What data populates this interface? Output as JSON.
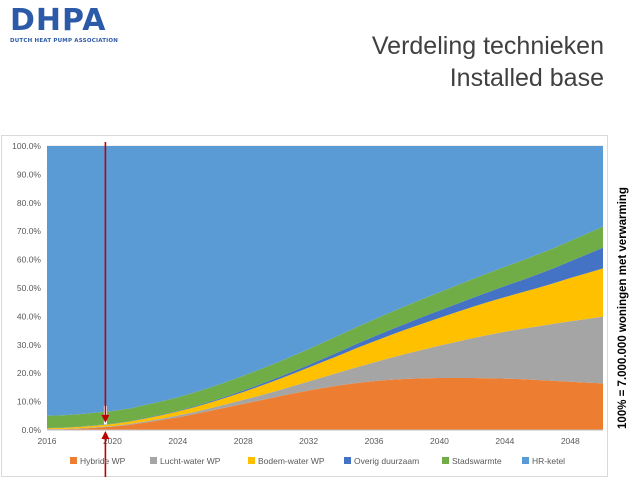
{
  "logo": {
    "text": "DHPA",
    "subtitle": "DUTCH HEAT PUMP ASSOCIATION"
  },
  "header": {
    "title_line1": "Verdeling technieken",
    "title_line2": "Installed base"
  },
  "side_note": "100% = 7.000.000 woningen met verwarming",
  "chart_data": {
    "type": "area",
    "stacked": true,
    "x": [
      2016,
      2017,
      2018,
      2019,
      2020,
      2021,
      2022,
      2023,
      2024,
      2025,
      2026,
      2027,
      2028,
      2029,
      2030,
      2031,
      2032,
      2033,
      2034,
      2035,
      2036,
      2037,
      2038,
      2039,
      2040,
      2041,
      2042,
      2043,
      2044,
      2045,
      2046,
      2047,
      2048,
      2049,
      2050
    ],
    "xticks": [
      "2016",
      "2020",
      "2024",
      "2028",
      "2032",
      "2036",
      "2040",
      "2044",
      "2048"
    ],
    "yticks": [
      "0.0%",
      "10.0%",
      "20.0%",
      "30.0%",
      "40.0%",
      "50.0%",
      "60.0%",
      "70.0%",
      "80.0%",
      "90.0%",
      "100.0%"
    ],
    "ylim": [
      0,
      100
    ],
    "series": [
      {
        "name": "Hybride WP",
        "color": "#ed7d31",
        "values": [
          0.2,
          0.3,
          0.5,
          0.8,
          1.2,
          1.8,
          2.6,
          3.5,
          4.5,
          5.6,
          6.8,
          8.0,
          9.2,
          10.4,
          11.6,
          12.8,
          13.9,
          14.9,
          15.8,
          16.6,
          17.2,
          17.7,
          18.0,
          18.2,
          18.3,
          18.3,
          18.3,
          18.2,
          18.1,
          17.9,
          17.6,
          17.3,
          17.0,
          16.7,
          16.4
        ]
      },
      {
        "name": "Lucht-water WP",
        "color": "#a5a5a5",
        "values": [
          0.1,
          0.1,
          0.1,
          0.2,
          0.2,
          0.3,
          0.4,
          0.5,
          0.6,
          0.7,
          0.9,
          1.1,
          1.4,
          1.7,
          2.1,
          2.6,
          3.2,
          3.9,
          4.7,
          5.6,
          6.6,
          7.7,
          8.9,
          10.1,
          11.4,
          12.7,
          14.0,
          15.3,
          16.5,
          17.7,
          18.9,
          20.1,
          21.3,
          22.4,
          23.5
        ]
      },
      {
        "name": "Bodem-water WP",
        "color": "#ffc000",
        "values": [
          0.3,
          0.4,
          0.5,
          0.6,
          0.7,
          0.8,
          1.0,
          1.2,
          1.4,
          1.7,
          2.0,
          2.4,
          2.8,
          3.3,
          3.8,
          4.3,
          4.9,
          5.5,
          6.1,
          6.8,
          7.4,
          8.0,
          8.6,
          9.2,
          9.8,
          10.4,
          11.0,
          11.6,
          12.2,
          12.8,
          13.5,
          14.3,
          15.2,
          16.1,
          17.0
        ]
      },
      {
        "name": "Overig duurzaam",
        "color": "#4472c4",
        "values": [
          0.1,
          0.1,
          0.1,
          0.1,
          0.1,
          0.1,
          0.2,
          0.2,
          0.2,
          0.3,
          0.3,
          0.4,
          0.5,
          0.6,
          0.7,
          0.8,
          0.9,
          1.1,
          1.3,
          1.5,
          1.7,
          1.9,
          2.1,
          2.4,
          2.6,
          2.9,
          3.2,
          3.5,
          3.9,
          4.3,
          4.8,
          5.3,
          5.9,
          6.6,
          7.3
        ]
      },
      {
        "name": "Stadswarmte",
        "color": "#70ad47",
        "values": [
          4.3,
          4.3,
          4.4,
          4.4,
          4.5,
          4.5,
          4.6,
          4.7,
          4.8,
          4.9,
          5.0,
          5.1,
          5.2,
          5.3,
          5.4,
          5.5,
          5.6,
          5.7,
          5.8,
          5.9,
          6.0,
          6.1,
          6.2,
          6.3,
          6.4,
          6.5,
          6.6,
          6.7,
          6.8,
          6.9,
          7.0,
          7.1,
          7.2,
          7.3,
          7.4
        ]
      },
      {
        "name": "HR-ketel",
        "color": "#5b9bd5",
        "values": [
          95.0,
          94.8,
          94.4,
          93.9,
          93.3,
          92.5,
          91.2,
          89.9,
          88.5,
          86.8,
          85.0,
          83.0,
          80.9,
          78.7,
          76.4,
          74.0,
          71.5,
          68.9,
          66.3,
          63.6,
          61.1,
          58.6,
          56.2,
          53.8,
          51.5,
          49.2,
          46.9,
          44.7,
          42.5,
          40.4,
          38.2,
          35.9,
          33.4,
          30.9,
          28.4
        ]
      }
    ],
    "annotations": {
      "marker_year": 2020,
      "arrow_color": "#c00000"
    },
    "grid": true,
    "legend": "bottom"
  }
}
